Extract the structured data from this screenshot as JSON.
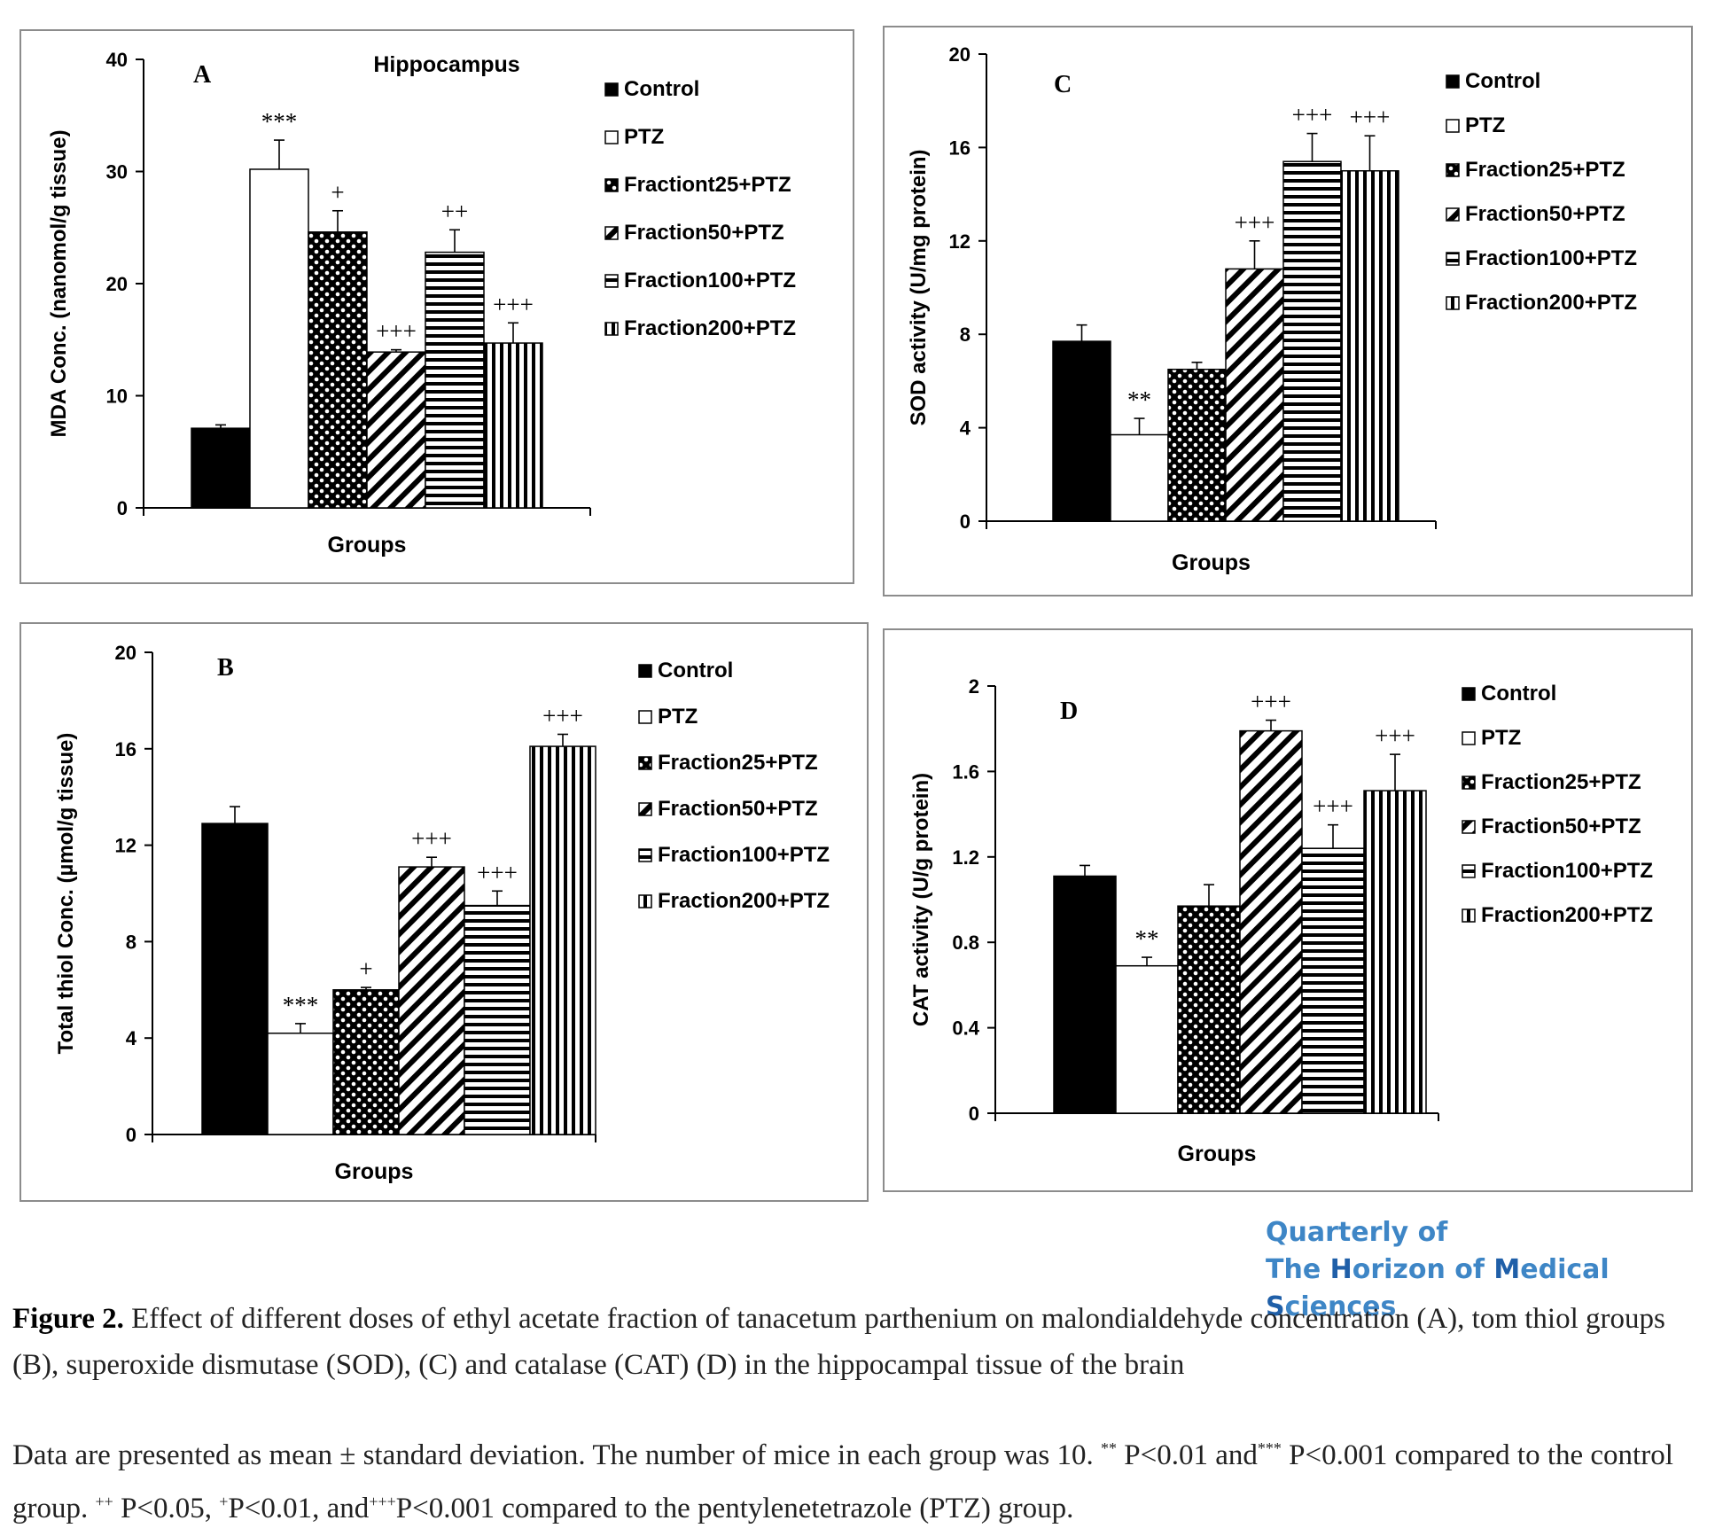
{
  "chart_data": [
    {
      "panel": "A",
      "type": "bar",
      "title": "Hippocampus",
      "ylabel": "MDA Conc. (nanomol/g tissue)",
      "xlabel": "Groups",
      "ylim": [
        0,
        40
      ],
      "yticks": [
        "0",
        "10",
        "20",
        "30",
        "40"
      ],
      "categories": [
        "Control",
        "PTZ",
        "Fractiont25+PTZ",
        "Fraction50+PTZ",
        "Fraction100+PTZ",
        "Fraction200+PTZ"
      ],
      "values": [
        7.1,
        30.2,
        24.6,
        13.9,
        22.8,
        14.7
      ],
      "errors": [
        0.3,
        2.6,
        1.9,
        0.2,
        2.0,
        1.8
      ],
      "annotations": [
        "",
        "***",
        "+",
        "+++",
        "++",
        "+++"
      ],
      "legend": [
        "Control",
        "PTZ",
        "Fractiont25+PTZ",
        "Fraction50+PTZ",
        "Fraction100+PTZ",
        "Fraction200+PTZ"
      ],
      "patterns": [
        "solid",
        "white",
        "dots",
        "diag",
        "hlines",
        "vlines"
      ]
    },
    {
      "panel": "B",
      "type": "bar",
      "title": "",
      "ylabel": "Total thiol Conc. (µmol/g tissue)",
      "xlabel": "Groups",
      "ylim": [
        0,
        20
      ],
      "yticks": [
        "0",
        "4",
        "8",
        "12",
        "16",
        "20"
      ],
      "categories": [
        "Control",
        "PTZ",
        "Fraction25+PTZ",
        "Fraction50+PTZ",
        "Fraction100+PTZ",
        "Fraction200+PTZ"
      ],
      "values": [
        12.9,
        4.2,
        6.0,
        11.1,
        9.5,
        16.1
      ],
      "errors": [
        0.7,
        0.4,
        0.1,
        0.4,
        0.6,
        0.5
      ],
      "annotations": [
        "",
        "***",
        "+",
        "+++",
        "+++",
        "+++"
      ],
      "legend": [
        "Control",
        "PTZ",
        "Fraction25+PTZ",
        "Fraction50+PTZ",
        "Fraction100+PTZ",
        "Fraction200+PTZ"
      ],
      "patterns": [
        "solid",
        "white",
        "dots",
        "diag",
        "hlines",
        "vlines"
      ]
    },
    {
      "panel": "C",
      "type": "bar",
      "title": "",
      "ylabel": "SOD activity (U/mg protein)",
      "xlabel": "Groups",
      "ylim": [
        0,
        20
      ],
      "yticks": [
        "0",
        "4",
        "8",
        "12",
        "16",
        "20"
      ],
      "categories": [
        "Control",
        "PTZ",
        "Fraction25+PTZ",
        "Fraction50+PTZ",
        "Fraction100+PTZ",
        "Fraction200+PTZ"
      ],
      "values": [
        7.7,
        3.7,
        6.5,
        10.8,
        15.4,
        15.0
      ],
      "errors": [
        0.7,
        0.7,
        0.3,
        1.2,
        1.2,
        1.5
      ],
      "annotations": [
        "",
        "**",
        "",
        "+++",
        "+++",
        "+++"
      ],
      "legend": [
        "Control",
        "PTZ",
        "Fraction25+PTZ",
        "Fraction50+PTZ",
        "Fraction100+PTZ",
        "Fraction200+PTZ"
      ],
      "patterns": [
        "solid",
        "white",
        "dots",
        "diag",
        "hlines",
        "vlines"
      ]
    },
    {
      "panel": "D",
      "type": "bar",
      "title": "",
      "ylabel": "CAT activity (U/g protein)",
      "xlabel": "Groups",
      "ylim": [
        0,
        2
      ],
      "yticks": [
        "0",
        "0.4",
        "0.8",
        "1.2",
        "1.6",
        "2"
      ],
      "categories": [
        "Control",
        "PTZ",
        "Fraction25+PTZ",
        "Fraction50+PTZ",
        "Fraction100+PTZ",
        "Fraction200+PTZ"
      ],
      "values": [
        1.11,
        0.69,
        0.97,
        1.79,
        1.24,
        1.51
      ],
      "errors": [
        0.05,
        0.04,
        0.1,
        0.05,
        0.11,
        0.17
      ],
      "annotations": [
        "",
        "**",
        "",
        "+++",
        "+++",
        "+++"
      ],
      "legend": [
        "Control",
        "PTZ",
        "Fraction25+PTZ",
        "Fraction50+PTZ",
        "Fraction100+PTZ",
        "Fraction200+PTZ"
      ],
      "patterns": [
        "solid",
        "white",
        "dots",
        "diag",
        "hlines",
        "vlines"
      ]
    }
  ],
  "journal_logo": {
    "line1": "Quarterly of",
    "line2_parts": [
      "The ",
      "H",
      "orizon of ",
      "M",
      "edical ",
      "S",
      "ciences"
    ]
  },
  "caption": {
    "label": "Figure 2.",
    "text": " Effect of different doses of ethyl acetate fraction of tanacetum parthenium on malondialdehyde concentration (A), tom thiol groups (B), superoxide dismutase (SOD), (C) and catalase (CAT) (D) in the hippocampal tissue of the brain"
  },
  "notes": {
    "p1": "Data are presented as mean ± standard deviation. The number of mice in each group was 10. ",
    "sup1": "**",
    "p2": " P<0.01 and",
    "sup2": "***",
    "p3": " P<0.001 compared to the control group. ",
    "sup3": "++",
    "p4": " P<0.05, ",
    "sup4": "+",
    "p5": "P<0.01, and",
    "sup5": "+++",
    "p6": "P<0.001 compared to the pentylenetetrazole (PTZ) group."
  },
  "colors": {
    "axis": "#000000",
    "panel_border": "#8c8c8c",
    "logo": "#3e86c6"
  }
}
